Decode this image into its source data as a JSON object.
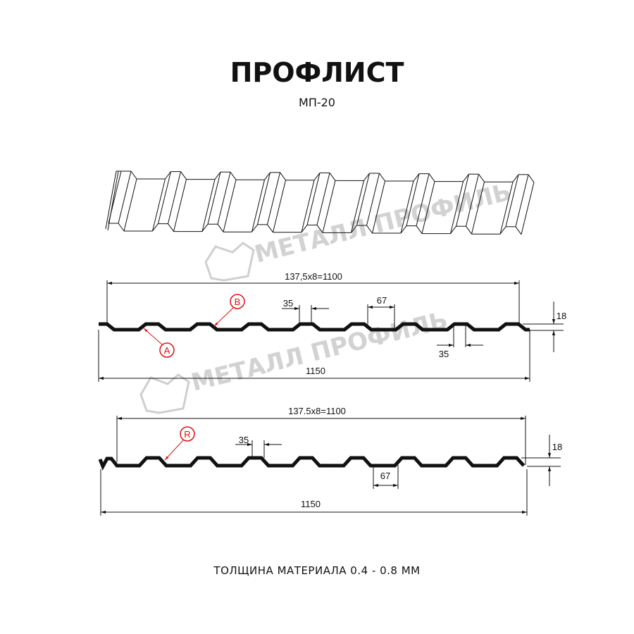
{
  "header": {
    "title": "ПРОФЛИСТ",
    "model": "МП-20"
  },
  "watermark": {
    "text": "МЕТАЛЛ ПРОФИЛЬ",
    "color": "#c8c8c8"
  },
  "profile_1": {
    "pitch_dimension": "137,5x8=1100",
    "total_width": "1150",
    "crest_width": "35",
    "valley_width": "67",
    "bottom_width": "35",
    "height": "18",
    "callout_top": "B",
    "callout_bottom": "A"
  },
  "profile_2": {
    "pitch_dimension": "137.5x8=1100",
    "total_width": "1150",
    "crest_width": "35",
    "valley_width": "67",
    "height": "18",
    "callout": "R"
  },
  "footer": {
    "thickness": "ТОЛЩИНА МАТЕРИАЛА 0.4 - 0.8 ММ"
  },
  "colors": {
    "line": "#111111",
    "callout": "#e01010",
    "watermark": "#c8c8c8"
  }
}
